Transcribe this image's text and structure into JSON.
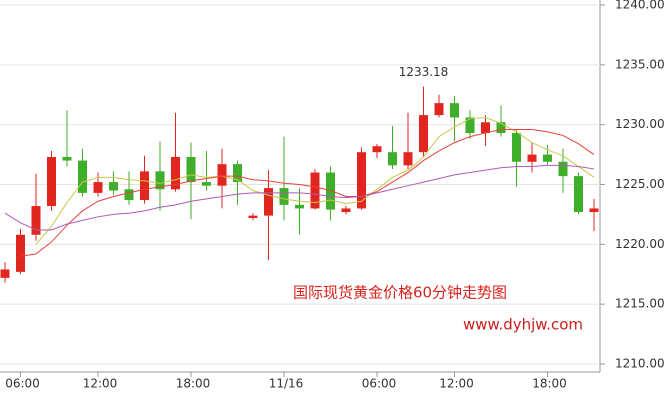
{
  "chart_data": {
    "type": "candlestick",
    "annotations": [
      "国际现货黄金价格60分钟走势图",
      "www.dyhjw.com"
    ],
    "max_label": "1233.18",
    "categories": [
      null,
      "06:00",
      null,
      null,
      null,
      null,
      "12:00",
      null,
      null,
      null,
      null,
      null,
      "18:00",
      null,
      null,
      null,
      null,
      null,
      "11/16",
      null,
      null,
      null,
      null,
      null,
      "06:00",
      null,
      null,
      null,
      null,
      "12:00",
      null,
      null,
      null,
      null,
      null,
      "18:00",
      null,
      null,
      null
    ],
    "open": [
      1217.2,
      1217.7,
      1220.8,
      1223.2,
      1227.3,
      1227.0,
      1224.3,
      1225.2,
      1224.6,
      1223.7,
      1226.1,
      1224.6,
      1227.3,
      1225.2,
      1224.9,
      1226.7,
      1222.2,
      1222.4,
      1224.7,
      1223.3,
      1223.0,
      1226.0,
      1222.7,
      1223.0,
      1227.7,
      1227.7,
      1226.6,
      1227.7,
      1230.8,
      1231.8,
      1230.6,
      1229.3,
      1230.2,
      1229.3,
      1226.9,
      1227.5,
      1226.9,
      1225.7,
      1222.7
    ],
    "close": [
      1217.9,
      1220.8,
      1223.2,
      1227.3,
      1227.0,
      1224.3,
      1225.2,
      1224.5,
      1223.7,
      1226.1,
      1224.6,
      1227.3,
      1225.2,
      1224.9,
      1226.7,
      1225.2,
      1222.4,
      1224.7,
      1223.3,
      1223.0,
      1226.0,
      1222.9,
      1223.0,
      1227.7,
      1228.2,
      1226.6,
      1227.7,
      1230.8,
      1231.8,
      1230.6,
      1229.3,
      1230.2,
      1229.3,
      1226.9,
      1227.5,
      1226.9,
      1225.7,
      1222.7,
      1223.0
    ],
    "high": [
      1218.5,
      1221.3,
      1225.9,
      1227.8,
      1231.2,
      1228.0,
      1226.0,
      1226.1,
      1226.1,
      1227.4,
      1228.6,
      1231.0,
      1228.5,
      1227.8,
      1228.0,
      1227.0,
      1222.6,
      1226.2,
      1229.0,
      1224.7,
      1226.3,
      1226.5,
      1223.2,
      1228.1,
      1228.4,
      1229.9,
      1231.0,
      1233.18,
      1232.5,
      1232.4,
      1231.2,
      1230.8,
      1231.6,
      1229.6,
      1228.5,
      1228.3,
      1228.0,
      1226.0,
      1223.8
    ],
    "low": [
      1216.8,
      1217.5,
      1220.3,
      1222.8,
      1226.5,
      1224.0,
      1224.0,
      1224.1,
      1223.3,
      1223.4,
      1222.8,
      1224.4,
      1222.1,
      1224.5,
      1223.0,
      1223.3,
      1222.0,
      1218.7,
      1222.0,
      1220.8,
      1222.9,
      1222.0,
      1222.5,
      1222.9,
      1227.2,
      1226.3,
      1226.3,
      1227.3,
      1230.6,
      1228.6,
      1228.8,
      1228.2,
      1229.0,
      1224.8,
      1226.0,
      1226.6,
      1224.3,
      1222.5,
      1221.1
    ],
    "up_color": "#e0261f",
    "down_color": "#3fae2a",
    "series": [
      {
        "color": "#c8c84a",
        "values": [
          null,
          null,
          1220.0,
          1221.5,
          1223.5,
          1225.2,
          1225.6,
          1225.6,
          1225.4,
          1225.3,
          1225.1,
          1225.4,
          1225.8,
          1225.6,
          1225.7,
          1225.4,
          1224.5,
          1224.1,
          1223.8,
          1223.6,
          1223.5,
          1223.7,
          1223.4,
          1223.6,
          1224.6,
          1225.6,
          1226.2,
          1227.3,
          1229.0,
          1229.8,
          1230.5,
          1230.6,
          1230.1,
          1229.4,
          1228.5,
          1227.9,
          1227.4,
          1226.5,
          1225.6
        ]
      },
      {
        "color": "#e8413a",
        "values": [
          null,
          1219.0,
          1219.2,
          1220.2,
          1221.6,
          1222.8,
          1223.6,
          1224.0,
          1224.3,
          1224.6,
          1224.8,
          1225.0,
          1225.3,
          1225.5,
          1225.7,
          1225.7,
          1225.4,
          1225.3,
          1225.1,
          1225.0,
          1224.8,
          1224.5,
          1224.0,
          1224.0,
          1224.4,
          1225.2,
          1226.0,
          1227.0,
          1227.8,
          1228.5,
          1229.0,
          1229.3,
          1229.6,
          1229.6,
          1229.6,
          1229.4,
          1229.1,
          1228.4,
          1227.5
        ]
      },
      {
        "color": "#b05ab8",
        "values": [
          1222.6,
          1221.8,
          1221.2,
          1221.2,
          1221.7,
          1222.0,
          1222.3,
          1222.5,
          1222.6,
          1222.8,
          1223.1,
          1223.3,
          1223.6,
          1223.8,
          1224.0,
          1224.2,
          1224.3,
          1224.3,
          1224.3,
          1224.3,
          1224.2,
          1224.0,
          1223.9,
          1224.0,
          1224.3,
          1224.6,
          1224.9,
          1225.2,
          1225.5,
          1225.8,
          1226.0,
          1226.2,
          1226.4,
          1226.5,
          1226.5,
          1226.6,
          1226.6,
          1226.5,
          1226.3
        ]
      }
    ],
    "ylim": [
      1210,
      1240
    ],
    "yticks": [
      {
        "value": 1210,
        "label": "1210.00"
      },
      {
        "value": 1215,
        "label": "1215.00"
      },
      {
        "value": 1220,
        "label": "1220.00"
      },
      {
        "value": 1225,
        "label": "1225.00"
      },
      {
        "value": 1230,
        "label": "1230.00"
      },
      {
        "value": 1235,
        "label": "1235.00"
      },
      {
        "value": 1240,
        "label": "1240.00"
      }
    ],
    "grid": true
  }
}
